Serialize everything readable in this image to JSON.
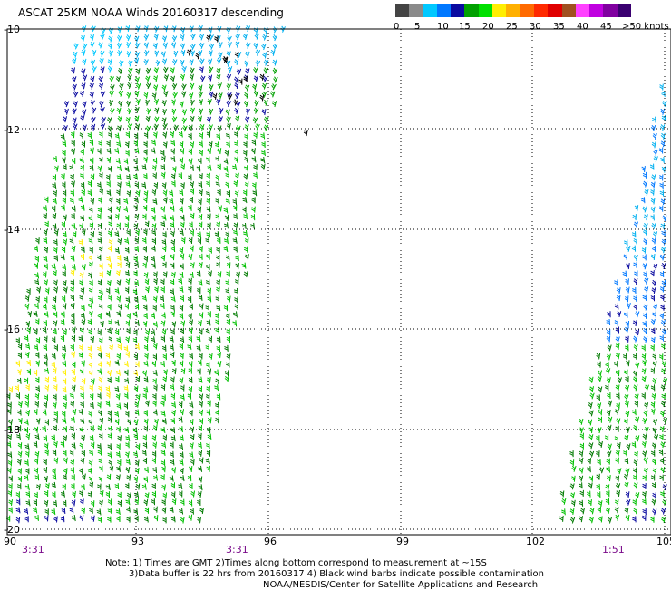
{
  "title": "ASCAT 25KM NOAA Winds 20160317 descending",
  "colorbar": {
    "labels": [
      "0",
      "5",
      "10",
      "15",
      "20",
      "25",
      "30",
      "35",
      "40",
      "45",
      ">50 knots"
    ],
    "colors": [
      "#444444",
      "#8a8a8a",
      "#00c8ff",
      "#0078ff",
      "#0a0aa0",
      "#00a000",
      "#00e000",
      "#ffee00",
      "#ffb000",
      "#ff6a00",
      "#ff2a00",
      "#e00000",
      "#a05020",
      "#ff40ff",
      "#c000e0",
      "#8000a0",
      "#3a0070"
    ]
  },
  "map": {
    "lat_labels": [
      "-10",
      "-12",
      "-14",
      "-16",
      "-18",
      "-20"
    ],
    "lon_labels": [
      "90",
      "93",
      "96",
      "99",
      "102",
      "105"
    ],
    "times": [
      "3:31",
      "3:31",
      "1:51"
    ],
    "grid": true
  },
  "notes": {
    "line1": "Note: 1) Times are GMT 2)Times along bottom correspond to measurement at ~15S",
    "line2": "3)Data buffer is 22 hrs from 20160317 4) Black wind barbs indicate possible contamination",
    "line3": "NOAA/NESDIS/Center for Satellite Applications and Research"
  }
}
